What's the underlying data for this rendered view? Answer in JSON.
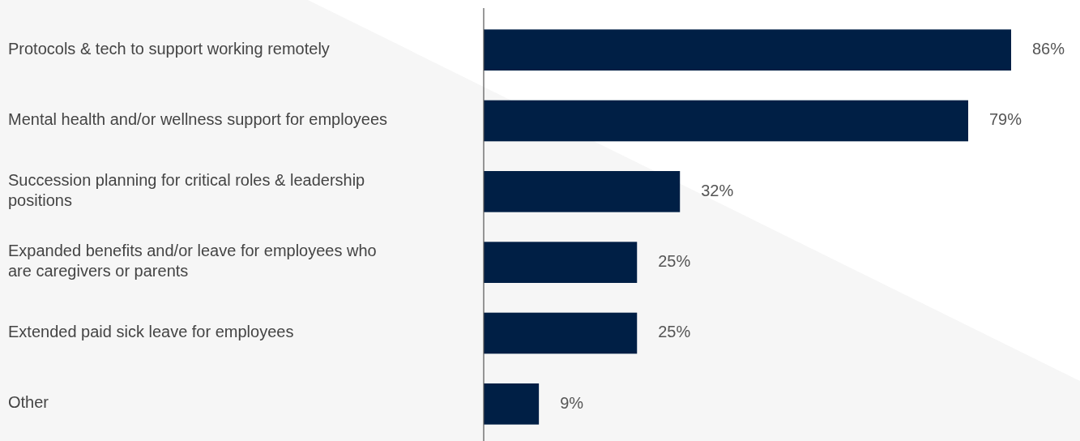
{
  "chart_data": {
    "type": "bar",
    "orientation": "horizontal",
    "categories": [
      "Protocols & tech to support working remotely",
      "Mental health and/or wellness support for employees",
      "Succession planning for critical roles & leadership positions",
      "Expanded benefits and/or leave for employees who are caregivers or parents",
      "Extended paid sick leave for employees",
      "Other"
    ],
    "values": [
      86,
      79,
      32,
      25,
      25,
      9
    ],
    "value_labels": [
      "86%",
      "79%",
      "32%",
      "25%",
      "25%",
      "9%"
    ],
    "color": "#001f45"
  }
}
